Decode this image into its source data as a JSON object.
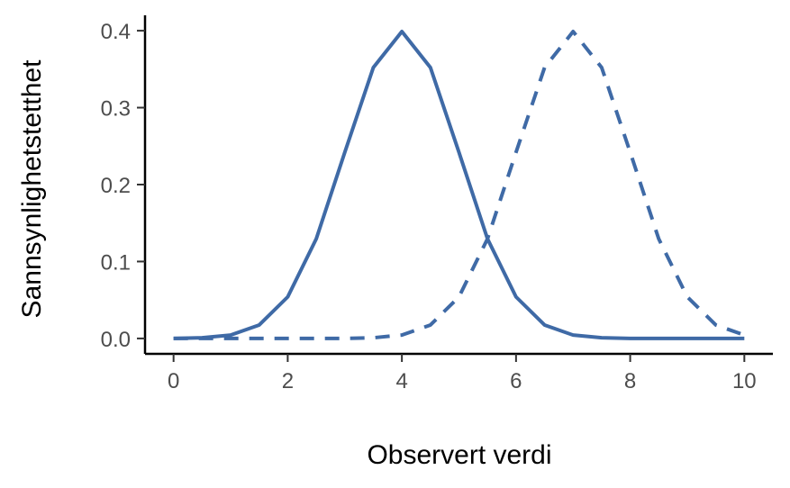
{
  "chart_data": {
    "type": "line",
    "xlabel": "Observert verdi",
    "ylabel": "Sannsynlighetstetthet",
    "xlim": [
      -0.5,
      10.5
    ],
    "ylim": [
      -0.02,
      0.42
    ],
    "x_ticks": [
      0,
      2,
      4,
      6,
      8,
      10
    ],
    "x_tick_labels": [
      "0",
      "2",
      "4",
      "6",
      "8",
      "10"
    ],
    "y_ticks": [
      0.0,
      0.1,
      0.2,
      0.3,
      0.4
    ],
    "y_tick_labels": [
      "0.0",
      "0.1",
      "0.2",
      "0.3",
      "0.4"
    ],
    "grid": false,
    "legend": "none",
    "line_color": "#3f6aa6",
    "series": [
      {
        "style": "solid",
        "x": [
          0,
          0.5,
          1,
          1.5,
          2,
          2.5,
          3,
          3.5,
          4,
          4.5,
          5,
          5.5,
          6,
          6.5,
          7,
          7.5,
          8,
          8.5,
          9,
          9.5,
          10
        ],
        "y": [
          0.0001,
          0.0009,
          0.0044,
          0.0175,
          0.054,
          0.1295,
          0.242,
          0.3521,
          0.3989,
          0.3521,
          0.242,
          0.1295,
          0.054,
          0.0175,
          0.0044,
          0.0009,
          0.0001,
          0.0,
          0.0,
          0.0,
          0.0
        ]
      },
      {
        "style": "dashed",
        "x": [
          0,
          0.5,
          1,
          1.5,
          2,
          2.5,
          3,
          3.5,
          4,
          4.5,
          5,
          5.5,
          6,
          6.5,
          7,
          7.5,
          8,
          8.5,
          9,
          9.5,
          10
        ],
        "y": [
          0.0,
          0.0,
          0.0,
          0.0,
          0.0,
          0.0,
          0.0001,
          0.0009,
          0.0044,
          0.0175,
          0.054,
          0.1295,
          0.242,
          0.3521,
          0.3989,
          0.3521,
          0.242,
          0.1295,
          0.054,
          0.0175,
          0.0044
        ]
      }
    ]
  }
}
